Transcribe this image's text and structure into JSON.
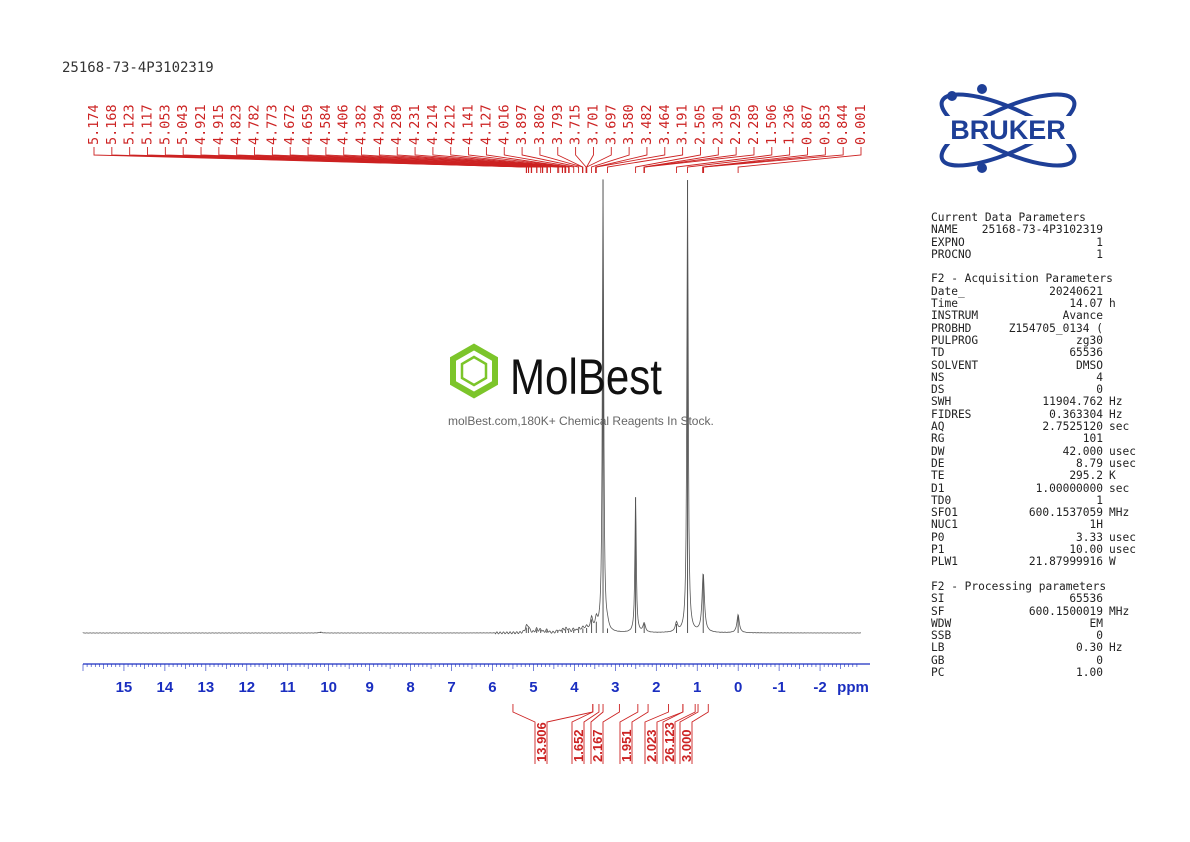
{
  "page": {
    "sample_title": "25168-73-4P3102319"
  },
  "logo": {
    "text": "BRUKER",
    "color": "#1e3f97"
  },
  "watermark": {
    "brand": "MolBest",
    "tagline": "molBest.com,180K+ Chemical Reagents In Stock.",
    "hex_color": "#7cc52a"
  },
  "parameters": {
    "current": {
      "title": "Current Data Parameters",
      "rows": [
        {
          "key": "NAME",
          "value": "25168-73-4P3102319",
          "unit": ""
        },
        {
          "key": "EXPNO",
          "value": "1",
          "unit": ""
        },
        {
          "key": "PROCNO",
          "value": "1",
          "unit": ""
        }
      ]
    },
    "acquisition": {
      "title": "F2 - Acquisition Parameters",
      "rows": [
        {
          "key": "Date_",
          "value": "20240621",
          "unit": ""
        },
        {
          "key": "Time",
          "value": "14.07",
          "unit": "h"
        },
        {
          "key": "INSTRUM",
          "value": "Avance",
          "unit": ""
        },
        {
          "key": "PROBHD",
          "value": "Z154705_0134 (",
          "unit": ""
        },
        {
          "key": "PULPROG",
          "value": "zg30",
          "unit": ""
        },
        {
          "key": "TD",
          "value": "65536",
          "unit": ""
        },
        {
          "key": "SOLVENT",
          "value": "DMSO",
          "unit": ""
        },
        {
          "key": "NS",
          "value": "4",
          "unit": ""
        },
        {
          "key": "DS",
          "value": "0",
          "unit": ""
        },
        {
          "key": "SWH",
          "value": "11904.762",
          "unit": "Hz"
        },
        {
          "key": "FIDRES",
          "value": "0.363304",
          "unit": "Hz"
        },
        {
          "key": "AQ",
          "value": "2.7525120",
          "unit": "sec"
        },
        {
          "key": "RG",
          "value": "101",
          "unit": ""
        },
        {
          "key": "DW",
          "value": "42.000",
          "unit": "usec"
        },
        {
          "key": "DE",
          "value": "8.79",
          "unit": "usec"
        },
        {
          "key": "TE",
          "value": "295.2",
          "unit": "K"
        },
        {
          "key": "D1",
          "value": "1.00000000",
          "unit": "sec"
        },
        {
          "key": "TD0",
          "value": "1",
          "unit": ""
        },
        {
          "key": "SFO1",
          "value": "600.1537059",
          "unit": "MHz"
        },
        {
          "key": "NUC1",
          "value": "1H",
          "unit": ""
        },
        {
          "key": "P0",
          "value": "3.33",
          "unit": "usec"
        },
        {
          "key": "P1",
          "value": "10.00",
          "unit": "usec"
        },
        {
          "key": "PLW1",
          "value": "21.87999916",
          "unit": "W"
        }
      ]
    },
    "processing": {
      "title": "F2 - Processing parameters",
      "rows": [
        {
          "key": "SI",
          "value": "65536",
          "unit": ""
        },
        {
          "key": "SF",
          "value": "600.1500019",
          "unit": "MHz"
        },
        {
          "key": "WDW",
          "value": "EM",
          "unit": ""
        },
        {
          "key": "SSB",
          "value": "0",
          "unit": ""
        },
        {
          "key": "LB",
          "value": "0.30",
          "unit": "Hz"
        },
        {
          "key": "GB",
          "value": "0",
          "unit": ""
        },
        {
          "key": "PC",
          "value": "1.00",
          "unit": ""
        }
      ]
    }
  },
  "chart_data": {
    "type": "line",
    "title": "",
    "xlabel": "ppm",
    "ylabel": "",
    "xlim": [
      16.0,
      -3.0
    ],
    "x_reversed": true,
    "grid": false,
    "x_ticks": [
      "15",
      "14",
      "13",
      "12",
      "11",
      "10",
      "9",
      "8",
      "7",
      "6",
      "5",
      "4",
      "3",
      "2",
      "1",
      "0",
      "-1",
      "-2"
    ],
    "x_tick_values": [
      15,
      14,
      13,
      12,
      11,
      10,
      9,
      8,
      7,
      6,
      5,
      4,
      3,
      2,
      1,
      0,
      -1,
      -2
    ],
    "peak_labels": [
      "5.174",
      "5.168",
      "5.123",
      "5.117",
      "5.053",
      "5.043",
      "4.921",
      "4.915",
      "4.823",
      "4.782",
      "4.773",
      "4.672",
      "4.659",
      "4.584",
      "4.406",
      "4.382",
      "4.294",
      "4.289",
      "4.231",
      "4.214",
      "4.212",
      "4.141",
      "4.127",
      "4.016",
      "3.897",
      "3.802",
      "3.793",
      "3.715",
      "3.701",
      "3.697",
      "3.580",
      "3.482",
      "3.464",
      "3.191",
      "2.505",
      "2.301",
      "2.295",
      "2.289",
      "1.506",
      "1.236",
      "0.867",
      "0.853",
      "0.844",
      "0.001"
    ],
    "peaks": [
      {
        "ppm": 5.174,
        "height": 0.012
      },
      {
        "ppm": 5.123,
        "height": 0.012
      },
      {
        "ppm": 4.921,
        "height": 0.008
      },
      {
        "ppm": 4.823,
        "height": 0.007
      },
      {
        "ppm": 4.672,
        "height": 0.006
      },
      {
        "ppm": 4.406,
        "height": 0.005
      },
      {
        "ppm": 4.294,
        "height": 0.006
      },
      {
        "ppm": 4.214,
        "height": 0.008
      },
      {
        "ppm": 4.141,
        "height": 0.006
      },
      {
        "ppm": 4.016,
        "height": 0.007
      },
      {
        "ppm": 3.897,
        "height": 0.008
      },
      {
        "ppm": 3.793,
        "height": 0.01
      },
      {
        "ppm": 3.701,
        "height": 0.011
      },
      {
        "ppm": 3.58,
        "height": 0.03
      },
      {
        "ppm": 3.464,
        "height": 0.025
      },
      {
        "ppm": 3.3,
        "height": 1.0
      },
      {
        "ppm": 3.191,
        "height": 0.01
      },
      {
        "ppm": 2.505,
        "height": 0.3
      },
      {
        "ppm": 2.295,
        "height": 0.02
      },
      {
        "ppm": 1.506,
        "height": 0.02
      },
      {
        "ppm": 1.236,
        "height": 1.0
      },
      {
        "ppm": 0.853,
        "height": 0.13
      },
      {
        "ppm": 0.001,
        "height": 0.04
      },
      {
        "ppm": 10.2,
        "height": 0.002
      }
    ],
    "integrals": [
      {
        "value": "13.906",
        "from": 5.5,
        "to": 3.55
      },
      {
        "value": "1.652",
        "from": 3.55,
        "to": 3.4
      },
      {
        "value": "2.167",
        "from": 3.3,
        "to": 2.9
      },
      {
        "value": "1.951",
        "from": 2.45,
        "to": 2.2
      },
      {
        "value": "2.023",
        "from": 1.7,
        "to": 1.35
      },
      {
        "value": "26.123",
        "from": 1.35,
        "to": 1.05
      },
      {
        "value": "3.000",
        "from": 0.98,
        "to": 0.73
      }
    ],
    "colors": {
      "spectrum": "#555555",
      "labels": "#cc2222",
      "axis_text": "#1a2ec0"
    }
  }
}
